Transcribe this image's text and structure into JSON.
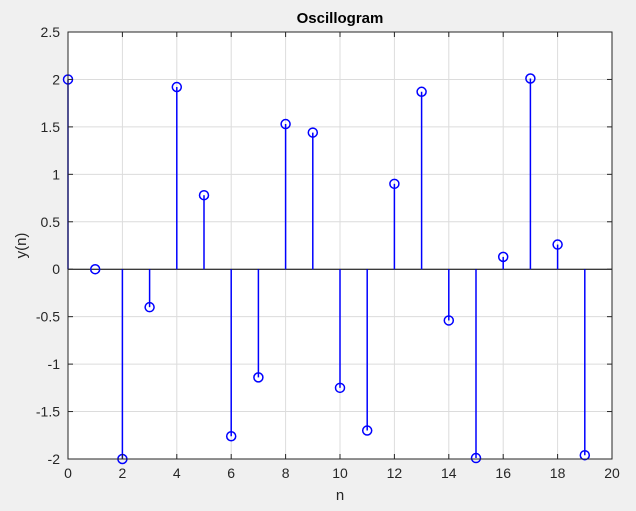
{
  "chart_data": {
    "type": "stem",
    "title": "Oscillogram",
    "xlabel": "n",
    "ylabel": "y(n)",
    "xlim": [
      0,
      20
    ],
    "ylim": [
      -2,
      2.5
    ],
    "xticks": [
      "0",
      "2",
      "4",
      "6",
      "8",
      "10",
      "12",
      "14",
      "16",
      "18",
      "20"
    ],
    "yticks": [
      "2.5",
      "2",
      "1.5",
      "1",
      "0.5",
      "0",
      "-0.5",
      "-1",
      "-1.5",
      "-2"
    ],
    "grid": true,
    "baseline": 0,
    "series": [
      {
        "x": [
          0,
          1,
          2,
          3,
          4,
          5,
          6,
          7,
          8,
          9,
          10,
          11,
          12,
          13,
          14,
          15,
          16,
          17,
          18,
          19
        ],
        "values": [
          2.0,
          0.0,
          -2.0,
          -0.4,
          1.92,
          0.78,
          -1.76,
          -1.14,
          1.53,
          1.44,
          -1.25,
          -1.7,
          0.9,
          1.87,
          -0.54,
          -1.99,
          0.13,
          2.01,
          0.26,
          -1.96
        ]
      }
    ],
    "colors": {
      "stem": "#0000ff",
      "grid": "#dcdcdc",
      "axes_background": "#ffffff",
      "figure_background": "#f0f0f0"
    }
  }
}
